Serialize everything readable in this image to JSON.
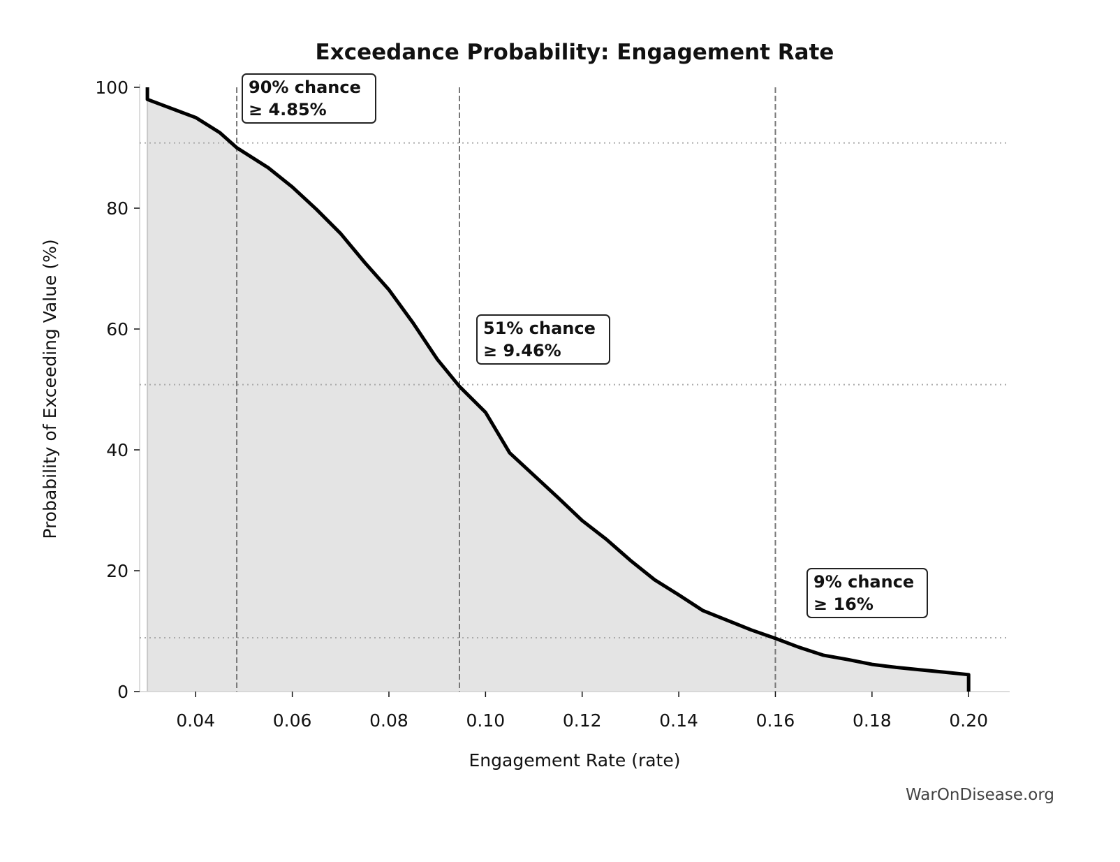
{
  "chart_data": {
    "type": "area",
    "title": "Exceedance Probability: Engagement Rate",
    "xlabel": "Engagement Rate (rate)",
    "ylabel": "Probability of Exceeding Value (%)",
    "xlim": [
      0.0284,
      0.2085
    ],
    "ylim": [
      0,
      100
    ],
    "xticks": [
      0.04,
      0.06,
      0.08,
      0.1,
      0.12,
      0.14,
      0.16,
      0.18,
      0.2
    ],
    "xtick_labels": [
      "0.04",
      "0.06",
      "0.08",
      "0.10",
      "0.12",
      "0.14",
      "0.16",
      "0.18",
      "0.20"
    ],
    "yticks": [
      0,
      20,
      40,
      60,
      80,
      100
    ],
    "ytick_labels": [
      "0",
      "20",
      "40",
      "60",
      "80",
      "100"
    ],
    "grid": false,
    "line_color": "#000000",
    "fill_color": "#e4e4e4",
    "series": [
      {
        "x": [
          0.03,
          0.03,
          0.035,
          0.04,
          0.045,
          0.0485,
          0.055,
          0.06,
          0.065,
          0.07,
          0.075,
          0.08,
          0.085,
          0.09,
          0.0946,
          0.1,
          0.105,
          0.11,
          0.115,
          0.12,
          0.125,
          0.13,
          0.135,
          0.14,
          0.145,
          0.15,
          0.155,
          0.16,
          0.165,
          0.17,
          0.175,
          0.18,
          0.185,
          0.19,
          0.195,
          0.2,
          0.2
        ],
        "y": [
          100,
          98,
          96.5,
          95,
          92.5,
          90,
          86.7,
          83.5,
          79.8,
          75.8,
          71,
          66.5,
          61,
          55,
          50.5,
          46.2,
          39.5,
          35.8,
          32.1,
          28.3,
          25.2,
          21.7,
          18.5,
          16,
          13.4,
          11.8,
          10.2,
          8.8,
          7.3,
          6,
          5.3,
          4.5,
          4,
          3.6,
          3.2,
          2.8,
          0
        ]
      }
    ],
    "annotations": [
      {
        "x": 0.0485,
        "y": 90.8,
        "line1": "90% chance",
        "line2": "≥ 4.85%"
      },
      {
        "x": 0.0946,
        "y": 50.8,
        "line1": "51% chance",
        "line2": "≥ 9.46%"
      },
      {
        "x": 0.16,
        "y": 8.9,
        "line1": "9% chance",
        "line2": "≥ 16%"
      }
    ],
    "watermark": "WarOnDisease.org"
  }
}
